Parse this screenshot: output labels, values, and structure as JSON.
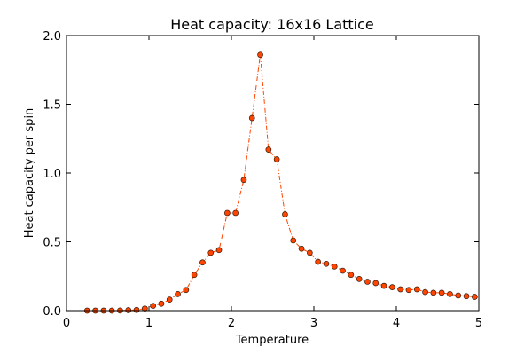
{
  "chart_data": {
    "type": "scatter",
    "title": "Heat capacity: 16x16 Lattice",
    "xlabel": "Temperature",
    "ylabel": "Heat capacity per spin",
    "xlim": [
      0,
      5
    ],
    "ylim": [
      0,
      2.0
    ],
    "xticks": [
      "0",
      "1",
      "2",
      "3",
      "4",
      "5"
    ],
    "yticks": [
      "0.0",
      "0.5",
      "1.0",
      "1.5",
      "2.0"
    ],
    "grid": false,
    "line_style": "dash-dot",
    "marker": "circle",
    "color": "#ff4500",
    "marker_edge_color": "#3a1a0a",
    "x": [
      0.25,
      0.35,
      0.45,
      0.55,
      0.65,
      0.75,
      0.85,
      0.95,
      1.05,
      1.15,
      1.25,
      1.35,
      1.45,
      1.55,
      1.65,
      1.75,
      1.85,
      1.95,
      2.05,
      2.15,
      2.25,
      2.35,
      2.45,
      2.55,
      2.65,
      2.75,
      2.85,
      2.95,
      3.05,
      3.15,
      3.25,
      3.35,
      3.45,
      3.55,
      3.65,
      3.75,
      3.85,
      3.95,
      4.05,
      4.15,
      4.25,
      4.35,
      4.45,
      4.55,
      4.65,
      4.75,
      4.85,
      4.95
    ],
    "y": [
      0,
      0,
      0,
      0,
      0.001,
      0.003,
      0.005,
      0.015,
      0.035,
      0.05,
      0.08,
      0.12,
      0.15,
      0.26,
      0.35,
      0.42,
      0.44,
      0.71,
      0.71,
      0.95,
      1.4,
      1.86,
      1.17,
      1.1,
      0.7,
      0.51,
      0.45,
      0.42,
      0.355,
      0.34,
      0.32,
      0.29,
      0.26,
      0.23,
      0.21,
      0.2,
      0.18,
      0.17,
      0.155,
      0.15,
      0.155,
      0.135,
      0.13,
      0.13,
      0.12,
      0.11,
      0.105,
      0.1
    ]
  }
}
